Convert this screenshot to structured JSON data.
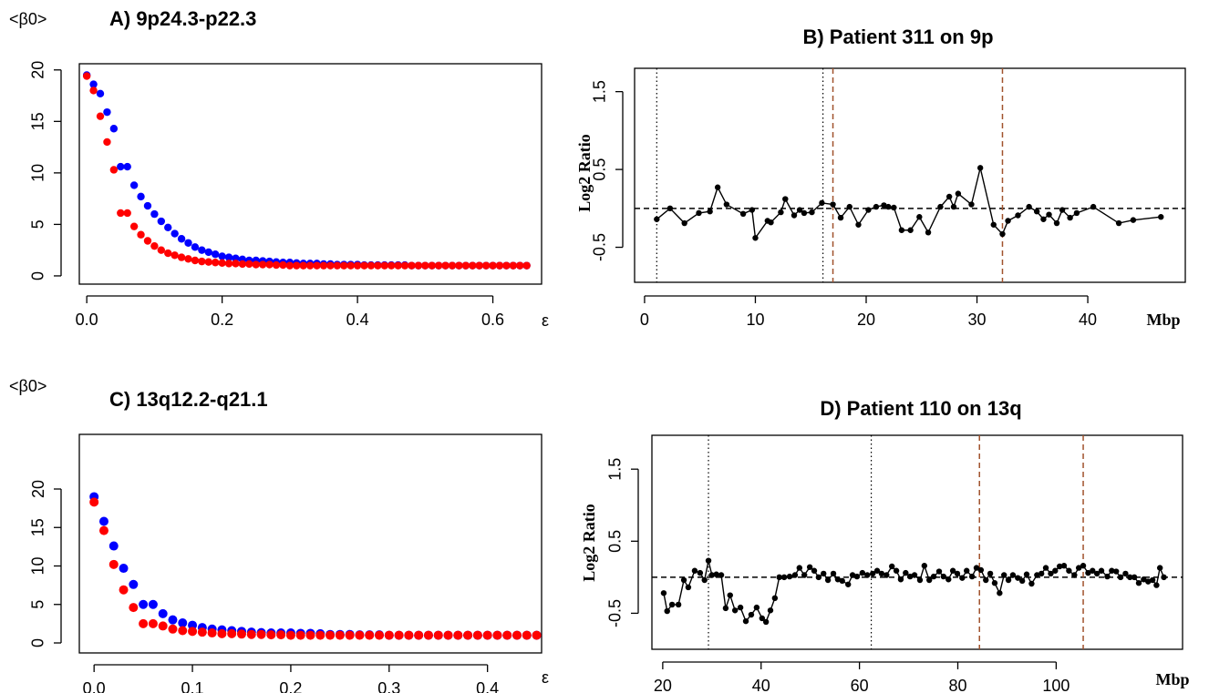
{
  "chart_data": [
    {
      "type": "scatter",
      "title": "A) 9p24.3-p22.3",
      "ylabel": "<β0>",
      "xlabel": "ε",
      "x": [
        0,
        0.01,
        0.02,
        0.03,
        0.04,
        0.05,
        0.06,
        0.07,
        0.08,
        0.09,
        0.1,
        0.11,
        0.12,
        0.13,
        0.14,
        0.15,
        0.16,
        0.17,
        0.18,
        0.19,
        0.2,
        0.21,
        0.22,
        0.23,
        0.24,
        0.25,
        0.26,
        0.27,
        0.28,
        0.29,
        0.3,
        0.31,
        0.32,
        0.33,
        0.34,
        0.35,
        0.36,
        0.37,
        0.38,
        0.39,
        0.4,
        0.41,
        0.42,
        0.43,
        0.44,
        0.45,
        0.46,
        0.47,
        0.48,
        0.49,
        0.5,
        0.51,
        0.52,
        0.53,
        0.54,
        0.55,
        0.56,
        0.57,
        0.58,
        0.59,
        0.6,
        0.61,
        0.62,
        0.63,
        0.64,
        0.65
      ],
      "series": [
        {
          "color": "#0000ff",
          "values": [
            19.5,
            18.6,
            17.7,
            15.9,
            14.3,
            10.6,
            10.6,
            8.8,
            7.7,
            6.8,
            6.0,
            5.3,
            4.7,
            4.1,
            3.6,
            3.2,
            2.8,
            2.5,
            2.3,
            2.1,
            1.9,
            1.8,
            1.7,
            1.6,
            1.5,
            1.5,
            1.45,
            1.4,
            1.35,
            1.3,
            1.3,
            1.25,
            1.2,
            1.2,
            1.2,
            1.15,
            1.15,
            1.1,
            1.1,
            1.1,
            1.1,
            1.05,
            1.05,
            1.05,
            1.05,
            1.05,
            1.05,
            1.05,
            1,
            1,
            1,
            1,
            1,
            1,
            1,
            1,
            1,
            1,
            1,
            1,
            1,
            1,
            1,
            1,
            1,
            1
          ]
        },
        {
          "color": "#ff0000",
          "values": [
            19.4,
            18.0,
            15.5,
            13.0,
            10.3,
            6.1,
            6.1,
            4.8,
            4.0,
            3.4,
            2.9,
            2.5,
            2.2,
            2.0,
            1.8,
            1.65,
            1.5,
            1.4,
            1.35,
            1.3,
            1.25,
            1.2,
            1.2,
            1.15,
            1.15,
            1.1,
            1.1,
            1.1,
            1.05,
            1.05,
            1,
            1,
            1,
            1,
            1,
            1,
            1,
            1,
            1,
            1,
            1,
            1,
            1,
            1,
            1,
            1,
            1,
            1,
            1,
            1,
            1,
            1,
            1,
            1,
            1,
            1,
            1,
            1,
            1,
            1,
            1,
            1,
            1,
            1,
            1,
            1
          ]
        }
      ],
      "xlim": [
        -0.011,
        0.672
      ],
      "ylim": [
        -0.8,
        20.6
      ],
      "xticks": [
        {
          "value": 0,
          "label": "0.0"
        },
        0.2,
        0.4,
        0.6
      ],
      "yticks": [
        0,
        5,
        10,
        15,
        20
      ]
    },
    {
      "type": "line",
      "title": "B) Patient 311 on 9p",
      "ylabel": "Log2 Ratio",
      "xlabel": "Mbp",
      "color": "#000000",
      "x": [
        1.1,
        2.3,
        3.6,
        4.9,
        5.9,
        6.6,
        7.4,
        8.9,
        9.7,
        10.0,
        11.1,
        11.4,
        12.3,
        12.7,
        13.5,
        14.0,
        14.4,
        15.1,
        16.0,
        17.0,
        17.7,
        18.5,
        19.3,
        20.2,
        20.9,
        21.6,
        22.0,
        22.5,
        23.2,
        24.0,
        24.8,
        25.6,
        26.7,
        27.5,
        27.9,
        28.3,
        29.5,
        30.3,
        31.5,
        32.3,
        32.8,
        33.7,
        34.7,
        35.4,
        36.0,
        36.5,
        37.2,
        37.7,
        38.4,
        39.0,
        40.5,
        42.8,
        44.1,
        46.6
      ],
      "values": [
        -0.14,
        0,
        -0.19,
        -0.06,
        -0.04,
        0.27,
        0.05,
        -0.07,
        -0.02,
        -0.38,
        -0.16,
        -0.18,
        -0.05,
        0.12,
        -0.09,
        -0.02,
        -0.06,
        -0.05,
        0.07,
        0.05,
        -0.12,
        0.02,
        -0.21,
        -0.02,
        0.02,
        0.04,
        0.02,
        0.01,
        -0.28,
        -0.28,
        -0.11,
        -0.31,
        0.02,
        0.15,
        0.02,
        0.19,
        0.05,
        0.52,
        -0.21,
        -0.33,
        -0.16,
        -0.09,
        0.02,
        -0.04,
        -0.14,
        -0.08,
        -0.19,
        -0.02,
        -0.12,
        -0.06,
        0.02,
        -0.19,
        -0.15,
        -0.11
      ],
      "hline": 0,
      "dotted_lines": [
        1.1,
        16.1
      ],
      "dashed_lines": [
        17.0,
        32.3
      ],
      "dashed_color": "#a0522d",
      "xlim": [
        -0.9,
        48.8
      ],
      "ylim": [
        -0.95,
        1.8
      ],
      "xticks": [
        0,
        10,
        20,
        30,
        40
      ],
      "yticks": [
        -0.5,
        0.5,
        1.5
      ]
    },
    {
      "type": "scatter",
      "title": "C) 13q12.2-q21.1",
      "ylabel": "<β0>",
      "xlabel": "ε",
      "x": [
        0,
        0.01,
        0.02,
        0.03,
        0.04,
        0.05,
        0.06,
        0.07,
        0.08,
        0.09,
        0.1,
        0.11,
        0.12,
        0.13,
        0.14,
        0.15,
        0.16,
        0.17,
        0.18,
        0.19,
        0.2,
        0.21,
        0.22,
        0.23,
        0.24,
        0.25,
        0.26,
        0.27,
        0.28,
        0.29,
        0.3,
        0.31,
        0.32,
        0.33,
        0.34,
        0.35,
        0.36,
        0.37,
        0.38,
        0.39,
        0.4,
        0.41,
        0.42,
        0.43,
        0.44,
        0.45
      ],
      "series": [
        {
          "color": "#0000ff",
          "values": [
            19.0,
            15.8,
            12.6,
            9.7,
            7.6,
            5.0,
            5.0,
            3.8,
            3.0,
            2.6,
            2.3,
            2.0,
            1.8,
            1.7,
            1.6,
            1.5,
            1.4,
            1.35,
            1.3,
            1.3,
            1.3,
            1.25,
            1.25,
            1.2,
            1.1,
            1.1,
            1.1,
            1.05,
            1.05,
            1.05,
            1,
            1,
            1,
            1,
            1,
            1,
            1,
            1,
            1,
            1,
            1,
            1,
            1,
            1,
            1,
            1
          ]
        },
        {
          "color": "#ff0000",
          "values": [
            18.3,
            14.6,
            10.2,
            6.9,
            4.6,
            2.5,
            2.5,
            2.2,
            1.8,
            1.6,
            1.5,
            1.4,
            1.3,
            1.2,
            1.2,
            1.15,
            1.1,
            1.1,
            1.05,
            1.05,
            1,
            1,
            1,
            1,
            1,
            1,
            1,
            1,
            1,
            1,
            1,
            1,
            1,
            1,
            1,
            1,
            1,
            1,
            1,
            1,
            1,
            1,
            1,
            1,
            1,
            1
          ]
        }
      ],
      "xlim": [
        -0.015,
        0.455
      ],
      "ylim": [
        -1.3,
        27.1
      ],
      "xticks": [
        {
          "value": 0,
          "label": "0.0"
        },
        0.1,
        0.2,
        0.3,
        0.4
      ],
      "yticks": [
        0,
        5,
        10,
        15,
        20
      ]
    },
    {
      "type": "line",
      "title": "D) Patient 110 on 13q",
      "ylabel": "Log2 Ratio",
      "xlabel": "Mbp",
      "color": "#000000",
      "x": [
        20.2,
        20.9,
        21.9,
        23.2,
        24.3,
        25.2,
        26.5,
        27.6,
        28.5,
        29.3,
        30.0,
        30.9,
        31.9,
        32.8,
        33.7,
        34.7,
        35.8,
        36.9,
        38.0,
        39.1,
        40.2,
        41.0,
        41.9,
        42.8,
        43.7,
        44.7,
        45.8,
        46.9,
        47.8,
        48.8,
        49.9,
        50.8,
        51.7,
        52.7,
        53.6,
        54.7,
        55.6,
        56.5,
        57.7,
        58.6,
        59.5,
        60.6,
        61.6,
        62.7,
        63.6,
        64.5,
        65.5,
        66.6,
        67.5,
        68.4,
        69.4,
        70.3,
        71.2,
        72.3,
        73.2,
        74.2,
        75.1,
        76.2,
        77.1,
        78.1,
        79.0,
        79.9,
        80.9,
        81.8,
        82.9,
        83.8,
        84.7,
        85.7,
        86.6,
        87.5,
        88.5,
        89.4,
        90.3,
        91.2,
        92.2,
        93.1,
        94.0,
        95.0,
        96.1,
        97.0,
        97.9,
        98.9,
        99.8,
        100.7,
        101.6,
        102.6,
        103.7,
        104.6,
        105.5,
        106.5,
        107.4,
        108.3,
        109.2,
        110.4,
        111.3,
        112.2,
        113.1,
        114.1,
        115.0,
        115.9,
        116.8,
        117.8,
        118.7,
        119.6,
        120.4,
        121.1,
        121.9
      ],
      "values": [
        -0.22,
        -0.47,
        -0.38,
        -0.38,
        -0.04,
        -0.14,
        0.09,
        0.06,
        -0.04,
        0.23,
        0.03,
        0.04,
        0.03,
        -0.43,
        -0.25,
        -0.46,
        -0.42,
        -0.61,
        -0.52,
        -0.42,
        -0.57,
        -0.62,
        -0.46,
        -0.29,
        0,
        0,
        0.01,
        0.03,
        0.13,
        0.03,
        0.14,
        0.09,
        0,
        0.05,
        -0.04,
        0.05,
        -0.03,
        -0.05,
        -0.1,
        0.03,
        0.01,
        0.06,
        0.03,
        0.05,
        0.09,
        0.05,
        0.03,
        0.15,
        0.09,
        -0.03,
        0.06,
        0.01,
        0.03,
        -0.04,
        0.16,
        -0.04,
        0.01,
        0.08,
        0.01,
        -0.03,
        0.09,
        0.05,
        -0.01,
        0.09,
        0.01,
        0.13,
        0.1,
        -0.04,
        0.05,
        -0.08,
        -0.22,
        0.03,
        -0.04,
        0.03,
        -0.01,
        -0.05,
        0.04,
        -0.09,
        0.03,
        0.05,
        0.13,
        0.05,
        0.09,
        0.15,
        0.16,
        0.09,
        0.03,
        0.13,
        0.16,
        0.06,
        0.09,
        0.05,
        0.09,
        0.01,
        0.09,
        0.08,
        0,
        0.05,
        0,
        0,
        -0.08,
        -0.03,
        -0.06,
        -0.04,
        -0.11,
        0.13,
        0
      ],
      "hline": 0,
      "dotted_lines": [
        29.3,
        62.4
      ],
      "dashed_lines": [
        84.4,
        105.5
      ],
      "dashed_color": "#a0522d",
      "xlim": [
        17.8,
        125.7
      ],
      "ylim": [
        -1.0,
        1.97
      ],
      "xticks": [
        20,
        40,
        60,
        80,
        100
      ],
      "yticks": [
        -0.5,
        0.5,
        1.5
      ]
    }
  ]
}
